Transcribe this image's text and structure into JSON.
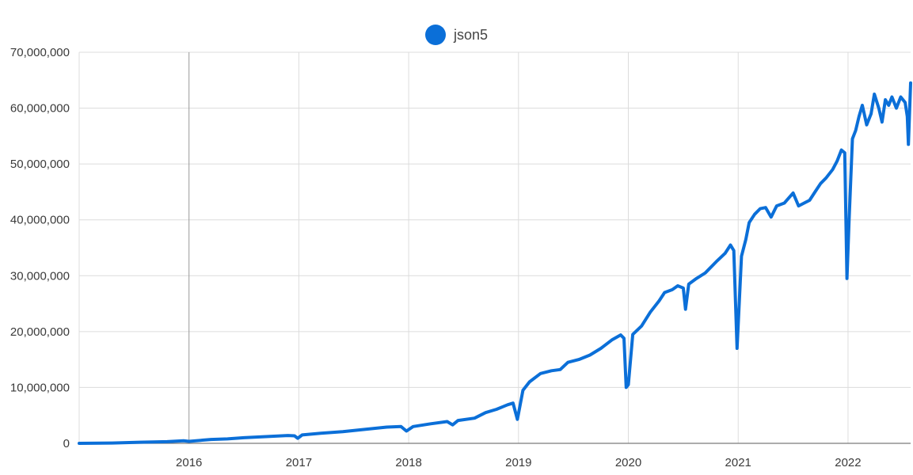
{
  "chart_data": {
    "type": "line",
    "title": "",
    "xlabel": "",
    "ylabel": "",
    "x_range": [
      2015.0,
      2022.57
    ],
    "ylim": [
      0,
      70000000
    ],
    "y_ticks": [
      0,
      10000000,
      20000000,
      30000000,
      40000000,
      50000000,
      60000000,
      70000000
    ],
    "y_tick_labels": [
      "0",
      "10,000,000",
      "20,000,000",
      "30,000,000",
      "40,000,000",
      "50,000,000",
      "60,000,000",
      "70,000,000"
    ],
    "x_ticks": [
      2016,
      2017,
      2018,
      2019,
      2020,
      2021,
      2022
    ],
    "x_tick_labels": [
      "2016",
      "2017",
      "2018",
      "2019",
      "2020",
      "2021",
      "2022"
    ],
    "grid": true,
    "legend_position": "top-center",
    "series": [
      {
        "name": "json5",
        "color": "#0b6fd8",
        "points": [
          [
            2015.0,
            0
          ],
          [
            2015.3,
            50000
          ],
          [
            2015.55,
            200000
          ],
          [
            2015.8,
            300000
          ],
          [
            2015.95,
            450000
          ],
          [
            2016.0,
            350000
          ],
          [
            2016.2,
            700000
          ],
          [
            2016.35,
            800000
          ],
          [
            2016.5,
            1000000
          ],
          [
            2016.7,
            1200000
          ],
          [
            2016.9,
            1400000
          ],
          [
            2016.96,
            1350000
          ],
          [
            2016.99,
            900000
          ],
          [
            2017.03,
            1500000
          ],
          [
            2017.2,
            1800000
          ],
          [
            2017.4,
            2100000
          ],
          [
            2017.6,
            2500000
          ],
          [
            2017.8,
            2900000
          ],
          [
            2017.93,
            3000000
          ],
          [
            2017.98,
            2200000
          ],
          [
            2018.04,
            3000000
          ],
          [
            2018.2,
            3500000
          ],
          [
            2018.35,
            3900000
          ],
          [
            2018.4,
            3300000
          ],
          [
            2018.45,
            4100000
          ],
          [
            2018.6,
            4500000
          ],
          [
            2018.7,
            5500000
          ],
          [
            2018.8,
            6100000
          ],
          [
            2018.9,
            6900000
          ],
          [
            2018.95,
            7200000
          ],
          [
            2018.99,
            4300000
          ],
          [
            2019.04,
            9500000
          ],
          [
            2019.1,
            11000000
          ],
          [
            2019.2,
            12500000
          ],
          [
            2019.3,
            13000000
          ],
          [
            2019.38,
            13200000
          ],
          [
            2019.45,
            14500000
          ],
          [
            2019.55,
            15000000
          ],
          [
            2019.65,
            15800000
          ],
          [
            2019.75,
            17000000
          ],
          [
            2019.85,
            18500000
          ],
          [
            2019.93,
            19400000
          ],
          [
            2019.96,
            18800000
          ],
          [
            2019.98,
            10000000
          ],
          [
            2020.0,
            10500000
          ],
          [
            2020.04,
            19500000
          ],
          [
            2020.12,
            21000000
          ],
          [
            2020.2,
            23500000
          ],
          [
            2020.28,
            25500000
          ],
          [
            2020.33,
            27000000
          ],
          [
            2020.4,
            27500000
          ],
          [
            2020.45,
            28200000
          ],
          [
            2020.5,
            27800000
          ],
          [
            2020.52,
            24000000
          ],
          [
            2020.55,
            28500000
          ],
          [
            2020.62,
            29500000
          ],
          [
            2020.7,
            30500000
          ],
          [
            2020.8,
            32500000
          ],
          [
            2020.88,
            34000000
          ],
          [
            2020.93,
            35500000
          ],
          [
            2020.96,
            34500000
          ],
          [
            2020.99,
            17000000
          ],
          [
            2021.03,
            33500000
          ],
          [
            2021.07,
            36500000
          ],
          [
            2021.1,
            39500000
          ],
          [
            2021.15,
            41000000
          ],
          [
            2021.2,
            42000000
          ],
          [
            2021.25,
            42200000
          ],
          [
            2021.3,
            40500000
          ],
          [
            2021.35,
            42500000
          ],
          [
            2021.42,
            43000000
          ],
          [
            2021.5,
            44800000
          ],
          [
            2021.55,
            42500000
          ],
          [
            2021.6,
            43000000
          ],
          [
            2021.65,
            43500000
          ],
          [
            2021.7,
            45000000
          ],
          [
            2021.75,
            46500000
          ],
          [
            2021.8,
            47500000
          ],
          [
            2021.86,
            49000000
          ],
          [
            2021.9,
            50500000
          ],
          [
            2021.94,
            52500000
          ],
          [
            2021.97,
            52000000
          ],
          [
            2021.99,
            29500000
          ],
          [
            2022.01,
            40000000
          ],
          [
            2022.04,
            54500000
          ],
          [
            2022.07,
            56000000
          ],
          [
            2022.1,
            58500000
          ],
          [
            2022.13,
            60500000
          ],
          [
            2022.17,
            57000000
          ],
          [
            2022.21,
            59000000
          ],
          [
            2022.24,
            62500000
          ],
          [
            2022.28,
            60000000
          ],
          [
            2022.31,
            57500000
          ],
          [
            2022.34,
            61500000
          ],
          [
            2022.37,
            60500000
          ],
          [
            2022.4,
            62000000
          ],
          [
            2022.44,
            60000000
          ],
          [
            2022.48,
            62000000
          ],
          [
            2022.52,
            61000000
          ],
          [
            2022.54,
            58500000
          ],
          [
            2022.55,
            53500000
          ],
          [
            2022.57,
            64500000
          ]
        ]
      }
    ]
  }
}
